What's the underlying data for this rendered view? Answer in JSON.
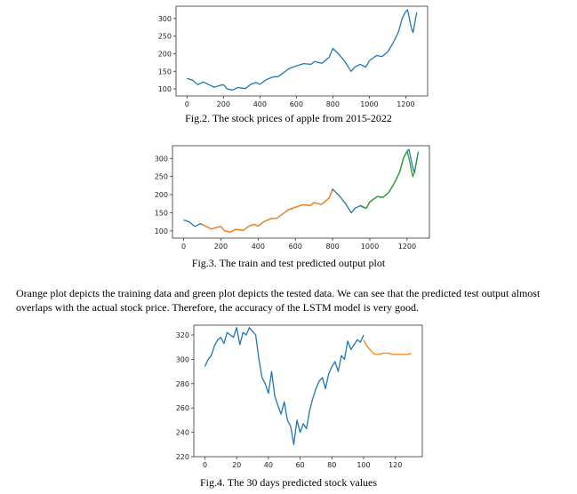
{
  "captions": {
    "fig2": "Fig.2. The stock prices of apple from 2015-2022",
    "fig3": "Fig.3. The train and test predicted output plot",
    "fig4": "Fig.4. The 30 days predicted stock values"
  },
  "paragraph": "Orange plot depicts the training data and green plot depicts the tested data. We can see that the predicted test output almost overlaps with the actual stock price. Therefore, the accuracy of the LSTM model is very good.",
  "colors": {
    "blue": "#1f77b4",
    "orange": "#ff7f0e",
    "green": "#2ca02c"
  },
  "chart_data": [
    {
      "type": "line",
      "xlim": [
        -60,
        1320
      ],
      "ylim": [
        80,
        335
      ],
      "xticks": [
        0,
        200,
        400,
        600,
        800,
        1000,
        1200
      ],
      "yticks": [
        100,
        150,
        200,
        250,
        300
      ],
      "series": [
        {
          "color": "#1f77b4",
          "x": [
            0,
            30,
            60,
            90,
            120,
            150,
            180,
            200,
            220,
            250,
            280,
            320,
            350,
            380,
            400,
            430,
            470,
            500,
            540,
            560,
            600,
            640,
            680,
            700,
            740,
            780,
            800,
            830,
            850,
            870,
            900,
            920,
            950,
            980,
            1000,
            1040,
            1070,
            1100,
            1130,
            1160,
            1180,
            1200,
            1210,
            1230,
            1240,
            1260
          ],
          "y": [
            130,
            125,
            112,
            120,
            112,
            105,
            110,
            112,
            100,
            97,
            104,
            101,
            113,
            118,
            113,
            125,
            134,
            135,
            150,
            158,
            165,
            172,
            170,
            178,
            173,
            190,
            215,
            200,
            188,
            175,
            150,
            162,
            170,
            162,
            180,
            195,
            192,
            205,
            230,
            262,
            300,
            320,
            325,
            275,
            260,
            318
          ]
        }
      ]
    },
    {
      "type": "line",
      "xlim": [
        -60,
        1320
      ],
      "ylim": [
        80,
        335
      ],
      "xticks": [
        0,
        200,
        400,
        600,
        800,
        1000,
        1200
      ],
      "yticks": [
        100,
        150,
        200,
        250,
        300
      ],
      "series": [
        {
          "color": "#1f77b4",
          "x": [
            0,
            30,
            60,
            90,
            120,
            150,
            180,
            200,
            220,
            250,
            280,
            320,
            350,
            380,
            400,
            430,
            470,
            500,
            540,
            560,
            600,
            640,
            680,
            700,
            740,
            780,
            800,
            830,
            850,
            870,
            900,
            920,
            950,
            980,
            1000,
            1040,
            1070,
            1100,
            1130,
            1160,
            1180,
            1200,
            1210,
            1230,
            1240,
            1260
          ],
          "y": [
            130,
            125,
            112,
            120,
            112,
            105,
            110,
            112,
            100,
            97,
            104,
            101,
            113,
            118,
            113,
            125,
            134,
            135,
            150,
            158,
            165,
            172,
            170,
            178,
            173,
            190,
            215,
            200,
            188,
            175,
            150,
            162,
            170,
            162,
            180,
            195,
            192,
            205,
            230,
            262,
            300,
            320,
            325,
            275,
            260,
            318
          ]
        },
        {
          "color": "#ff7f0e",
          "x": [
            100,
            120,
            150,
            180,
            200,
            220,
            250,
            280,
            320,
            350,
            380,
            400,
            430,
            470,
            500,
            540,
            560,
            600,
            640,
            680,
            700,
            740,
            780,
            800
          ],
          "y": [
            118,
            112,
            105,
            110,
            112,
            100,
            97,
            104,
            101,
            113,
            118,
            113,
            125,
            134,
            135,
            150,
            158,
            165,
            172,
            170,
            178,
            173,
            190,
            213
          ]
        },
        {
          "color": "#2ca02c",
          "x": [
            950,
            980,
            1000,
            1040,
            1070,
            1100,
            1130,
            1160,
            1180,
            1200,
            1210,
            1230,
            1240,
            1260
          ],
          "y": [
            168,
            162,
            180,
            195,
            192,
            205,
            230,
            262,
            300,
            320,
            300,
            250,
            262,
            316
          ]
        }
      ]
    },
    {
      "type": "line",
      "xlim": [
        -7,
        137
      ],
      "ylim": [
        220,
        328
      ],
      "xticks": [
        0,
        20,
        40,
        60,
        80,
        100,
        120
      ],
      "yticks": [
        220,
        240,
        260,
        280,
        300,
        320
      ],
      "series": [
        {
          "color": "#1f77b4",
          "x": [
            0,
            2,
            4,
            6,
            8,
            10,
            12,
            14,
            16,
            18,
            20,
            22,
            24,
            26,
            28,
            30,
            32,
            34,
            36,
            38,
            40,
            42,
            44,
            46,
            48,
            50,
            52,
            54,
            56,
            58,
            60,
            62,
            64,
            66,
            68,
            70,
            72,
            74,
            76,
            78,
            80,
            82,
            84,
            86,
            88,
            90,
            92,
            94,
            96,
            98,
            100
          ],
          "y": [
            294,
            300,
            303,
            311,
            316,
            318,
            313,
            322,
            320,
            318,
            326,
            312,
            322,
            320,
            326,
            323,
            320,
            300,
            285,
            280,
            272,
            290,
            270,
            262,
            255,
            265,
            250,
            245,
            230,
            250,
            240,
            247,
            243,
            258,
            268,
            276,
            282,
            285,
            276,
            288,
            294,
            298,
            290,
            303,
            300,
            315,
            308,
            312,
            316,
            314,
            320
          ]
        },
        {
          "color": "#ff7f0e",
          "x": [
            100,
            102,
            104,
            106,
            108,
            110,
            112,
            114,
            116,
            118,
            120,
            122,
            124,
            126,
            128,
            130
          ],
          "y": [
            316,
            311,
            308,
            305,
            304,
            304,
            305,
            305,
            305,
            304,
            304,
            304,
            304,
            304,
            304,
            305
          ]
        }
      ]
    }
  ]
}
